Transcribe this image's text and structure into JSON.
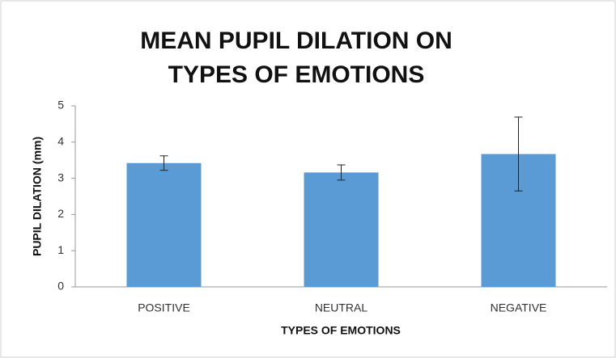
{
  "chart_data": {
    "type": "bar",
    "title": "MEAN PUPIL DILATION ON TYPES OF EMOTIONS",
    "xlabel": "TYPES OF EMOTIONS",
    "ylabel": "PUPIL DILATION (mm)",
    "categories": [
      "POSITIVE",
      "NEUTRAL",
      "NEGATIVE"
    ],
    "values": [
      3.42,
      3.16,
      3.67
    ],
    "errors": [
      0.2,
      0.21,
      1.02
    ],
    "color": "#5b9bd5",
    "ylim": [
      0,
      5
    ],
    "yticks": [
      0,
      1,
      2,
      3,
      4,
      5
    ],
    "grid": false
  }
}
